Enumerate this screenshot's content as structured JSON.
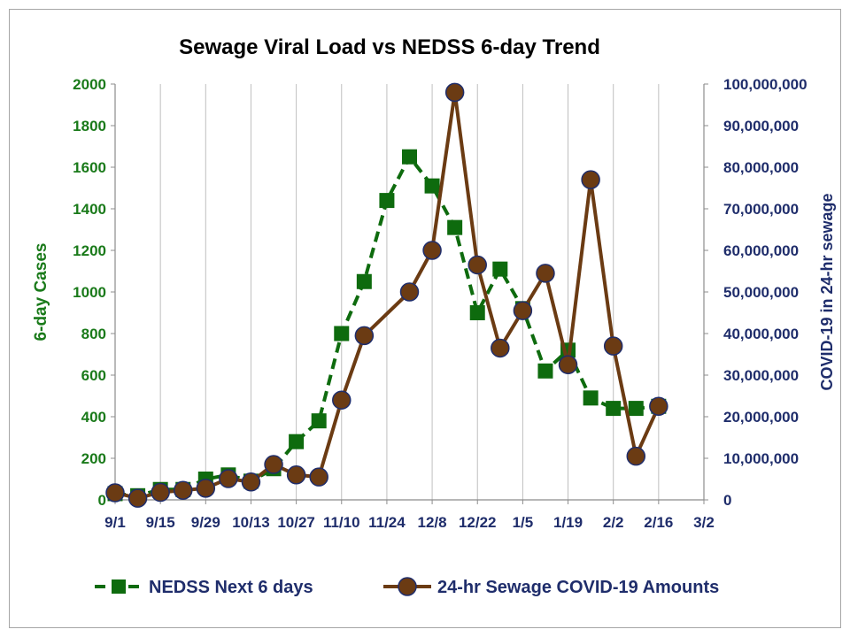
{
  "chart_data": {
    "type": "line",
    "title": "Sewage Viral Load vs NEDSS 6-day Trend",
    "ylabel_left": "6-day Cases",
    "ylabel_right": "COVID-19 in 24-hr sewage",
    "x_tick_labels": [
      "9/1",
      "9/15",
      "9/29",
      "10/13",
      "10/27",
      "11/10",
      "11/24",
      "12/8",
      "12/22",
      "1/5",
      "1/19",
      "2/2",
      "2/16",
      "3/2"
    ],
    "ylim_left": [
      0,
      2000
    ],
    "yticks_left": [
      "0",
      "200",
      "400",
      "600",
      "800",
      "1000",
      "1200",
      "1400",
      "1600",
      "1800",
      "2000"
    ],
    "ylim_right": [
      0,
      100000000
    ],
    "yticks_right": [
      "0",
      "10,000,000",
      "20,000,000",
      "30,000,000",
      "40,000,000",
      "50,000,000",
      "60,000,000",
      "70,000,000",
      "80,000,000",
      "90,000,000",
      "100,000,000"
    ],
    "x_unit_note": "days since 9/1",
    "series": [
      {
        "name": "NEDSS Next 6 days",
        "axis": "left",
        "color": "#0e6b0e",
        "marker": "square",
        "line_style": "dashed",
        "x": [
          0,
          7,
          14,
          21,
          28,
          35,
          42,
          49,
          56,
          63,
          70,
          77,
          84,
          91,
          98,
          105,
          112,
          119,
          126,
          133,
          140,
          147,
          154,
          161,
          168
        ],
        "y": [
          30,
          20,
          50,
          50,
          100,
          120,
          90,
          150,
          280,
          380,
          800,
          1050,
          1440,
          1650,
          1510,
          1310,
          900,
          1110,
          920,
          620,
          720,
          490,
          440,
          440,
          450
        ]
      },
      {
        "name": "24-hr Sewage COVID-19 Amounts",
        "axis": "right",
        "color": "#6b3b13",
        "marker": "circle",
        "line_style": "solid",
        "x": [
          0,
          7,
          14,
          21,
          28,
          35,
          42,
          49,
          56,
          63,
          70,
          77,
          91,
          98,
          105,
          112,
          119,
          126,
          133,
          140,
          147,
          154,
          161,
          168
        ],
        "y": [
          1700000,
          400000,
          1800000,
          2300000,
          2800000,
          5100000,
          4300000,
          8500000,
          6000000,
          5500000,
          24000000,
          39500000,
          50000000,
          60000000,
          98000000,
          56500000,
          36500000,
          45500000,
          54500000,
          32500000,
          77000000,
          37000000,
          10500000,
          22500000
        ]
      }
    ],
    "legend_position": "bottom",
    "grid": "vertical"
  }
}
